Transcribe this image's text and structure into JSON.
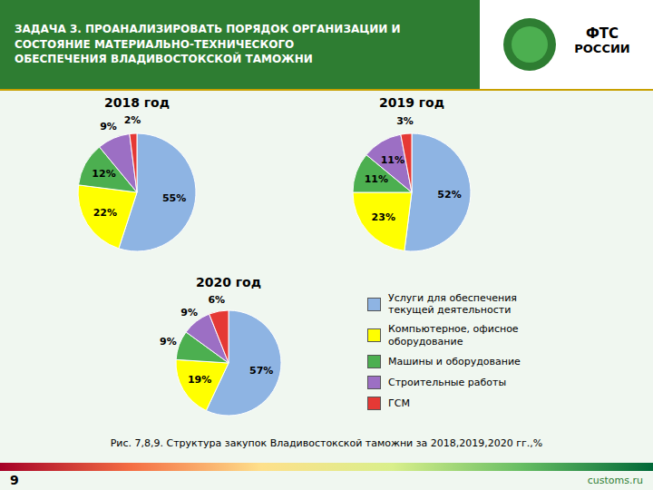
{
  "title": "ЗАДАЧА 3. ПРОАНАЛИЗИРОВАТЬ ПОРЯДОК ОРГАНИЗАЦИИ И\nСОСТОЯНИЕ МАТЕРИАЛЬНО-ТЕХНИЧЕСКОГО\nОБЕСПЕЧЕНИЯ ВЛАДИВОСТОКСКОЙ ТАМОЖНИ",
  "subtitle": "Рис. 7,8,9. Структура закупок Владивостокской таможни за 2018,2019,2020 гг.,%",
  "annotations": [
    "ФТС",
    "РОССИИ",
    "9",
    "customs.ru"
  ],
  "chart_data": [
    {
      "type": "pie",
      "title": "2018 год",
      "categories": [
        "Услуги для обеспечения\nтекущей деятельности",
        "Компьютерное, офисное\nоборудование",
        "Машины и оборудование",
        "Строительные работы",
        "ГСМ"
      ],
      "values": [
        55,
        22,
        12,
        9,
        2
      ],
      "value_labels": [
        "55%",
        "22%",
        "12%",
        "9%",
        "2%"
      ],
      "colors": [
        "#8eb4e3",
        "#ffff00",
        "#4caf50",
        "#9c6fc4",
        "#e53935"
      ],
      "data_labels": true
    },
    {
      "type": "pie",
      "title": "2019 год",
      "categories": [
        "Услуги для обеспечения\nтекущей деятельности",
        "Компьютерное, офисное\nоборудование",
        "Машины и оборудование",
        "Строительные работы",
        "ГСМ"
      ],
      "values": [
        52,
        23,
        11,
        11,
        3
      ],
      "value_labels": [
        "52%",
        "23%",
        "11%",
        "11%",
        "3%"
      ],
      "colors": [
        "#8eb4e3",
        "#ffff00",
        "#4caf50",
        "#9c6fc4",
        "#e53935"
      ],
      "data_labels": true
    },
    {
      "type": "pie",
      "title": "2020 год",
      "categories": [
        "Услуги для обеспечения\nтекущей деятельности",
        "Компьютерное, офисное\nоборудование",
        "Машины и оборудование",
        "Строительные работы",
        "ГСМ"
      ],
      "values": [
        57,
        19,
        9,
        9,
        6
      ],
      "value_labels": [
        "57%",
        "19%",
        "9%",
        "9%",
        "6%"
      ],
      "colors": [
        "#8eb4e3",
        "#ffff00",
        "#4caf50",
        "#9c6fc4",
        "#e53935"
      ],
      "data_labels": true,
      "legend": "right"
    }
  ]
}
